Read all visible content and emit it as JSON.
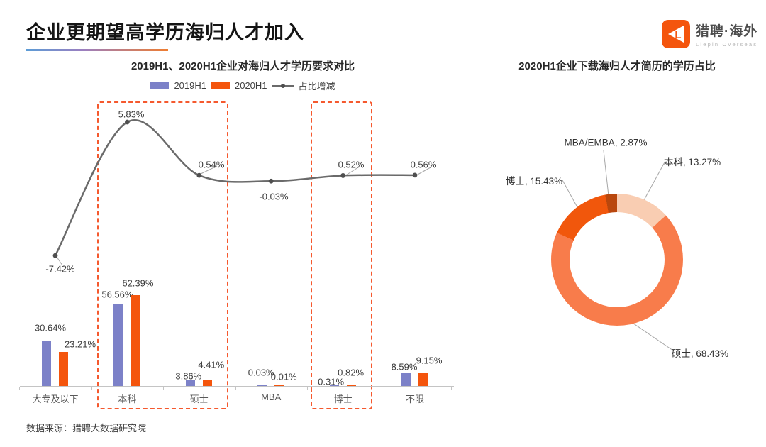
{
  "header": {
    "title": "企业更期望高学历海归人才加入",
    "logo": {
      "name_cn": "猎聘·海外",
      "name_en": "Liepin Overseas"
    }
  },
  "footer": {
    "source": "数据来源：猎聘大数据研究院"
  },
  "colors": {
    "bar_2019": "#7C81C8",
    "bar_2020": "#F4550D",
    "line": "#6A6A6A",
    "line_dot": "#4F4F4F",
    "dashed_highlight_box": "#F5592E",
    "brand_orange": "#F4550D",
    "title_underline": [
      "#5C9CD6",
      "#EE7D31"
    ]
  },
  "chart_data": [
    {
      "type": "bar",
      "subtype": "grouped bars with difference line (secondary axis)",
      "title": "2019H1、2020H1企业对海归人才学历要求对比",
      "categories": [
        "大专及以下",
        "本科",
        "硕士",
        "MBA",
        "博士",
        "不限"
      ],
      "series": [
        {
          "name": "2019H1",
          "color": "#7C81C8",
          "values": [
            30.64,
            56.56,
            3.86,
            0.03,
            0.31,
            8.59
          ]
        },
        {
          "name": "2020H1",
          "color": "#F4550D",
          "values": [
            23.21,
            62.39,
            4.41,
            0.01,
            0.82,
            9.15
          ]
        }
      ],
      "line_series": {
        "name": "占比增减",
        "color": "#6A6A6A",
        "values": [
          -7.42,
          5.83,
          0.54,
          -0.03,
          0.52,
          0.56
        ]
      },
      "unit": "%",
      "value_labels": true,
      "legend_position": "top",
      "grid": false,
      "highlighted_categories": [
        [
          "本科",
          "硕士"
        ],
        [
          "博士"
        ]
      ]
    },
    {
      "type": "pie",
      "subtype": "donut",
      "title": "2020H1企业下载海归人才简历的学历占比",
      "slices": [
        {
          "label": "本科",
          "value": 13.27,
          "color": "#F9CDB2"
        },
        {
          "label": "硕士",
          "value": 68.43,
          "color": "#F87C4B"
        },
        {
          "label": "博士",
          "value": 15.43,
          "color": "#F1570C"
        },
        {
          "label": "MBA/EMBA",
          "value": 2.87,
          "color": "#B9470D"
        }
      ],
      "unit": "%",
      "start_angle_deg": 0,
      "direction": "clockwise",
      "labels_outside_with_leader_lines": true
    }
  ]
}
